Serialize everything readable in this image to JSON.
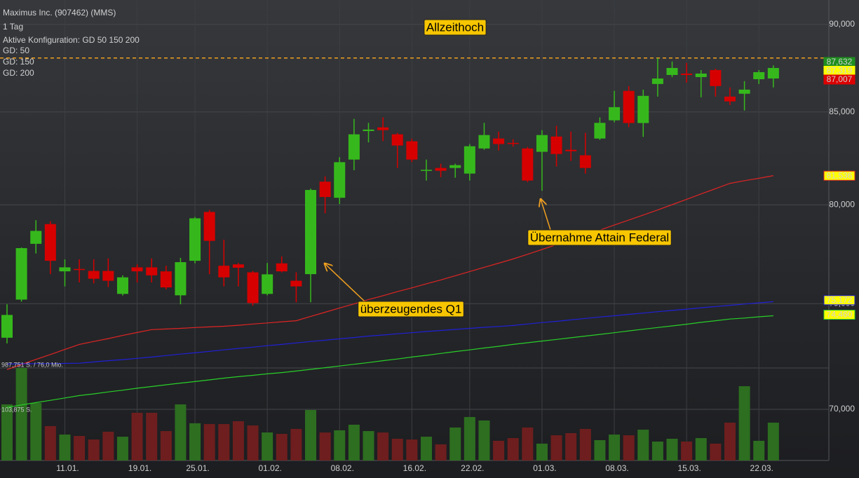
{
  "chart_data": {
    "type": "candlestick",
    "title": "Maximus Inc. (907462) (MMS)",
    "subtitle": "1 Tag",
    "config_label": "Aktive Konfiguration: GD 50 150 200",
    "categories": [
      null,
      null,
      null,
      null,
      "11.01.",
      null,
      null,
      null,
      null,
      "19.01.",
      null,
      null,
      null,
      "25.01.",
      null,
      null,
      null,
      null,
      "01.02.",
      null,
      null,
      null,
      null,
      "08.02.",
      null,
      null,
      null,
      null,
      "16.02.",
      null,
      null,
      null,
      "22.02.",
      null,
      null,
      null,
      null,
      "01.03.",
      null,
      null,
      null,
      null,
      "08.03.",
      null,
      null,
      null,
      null,
      "15.03.",
      null,
      null,
      null,
      null,
      "22.03.",
      null
    ],
    "open": [
      73.35,
      75.2,
      77.99,
      79.0,
      76.6,
      76.72,
      76.62,
      76.62,
      75.48,
      76.8,
      76.8,
      76.6,
      75.41,
      77.13,
      79.63,
      76.88,
      76.95,
      76.55,
      75.48,
      77.0,
      76.13,
      76.46,
      81.22,
      80.37,
      82.4,
      83.95,
      84.15,
      83.77,
      83.39,
      81.8,
      81.95,
      81.95,
      81.65,
      83.0,
      83.54,
      83.3,
      83.0,
      82.82,
      83.65,
      82.93,
      82.63,
      83.54,
      84.54,
      86.18,
      84.39,
      86.57,
      87.08,
      87.16,
      86.96,
      87.36,
      85.86,
      86.02,
      86.84,
      86.88
    ],
    "high": [
      74.97,
      77.8,
      79.2,
      79.15,
      77.2,
      77.2,
      77.2,
      77.25,
      76.4,
      76.95,
      77.25,
      76.88,
      77.28,
      79.37,
      79.74,
      78.2,
      77.02,
      76.62,
      77.02,
      77.35,
      76.55,
      80.85,
      81.5,
      82.53,
      84.62,
      84.4,
      84.7,
      83.85,
      83.54,
      82.4,
      82.18,
      82.18,
      83.24,
      84.4,
      83.92,
      83.5,
      83.08,
      84.0,
      84.24,
      83.92,
      83.85,
      84.7,
      86.18,
      86.45,
      86.25,
      88.05,
      87.85,
      87.77,
      87.36,
      87.44,
      86.37,
      86.73,
      87.36,
      87.63
    ],
    "low": [
      73.08,
      75.1,
      77.5,
      76.46,
      75.85,
      76.05,
      76.0,
      75.82,
      75.4,
      76.05,
      76.05,
      75.7,
      74.97,
      77.0,
      76.46,
      75.85,
      75.85,
      74.9,
      75.41,
      76.55,
      75.07,
      75.07,
      79.56,
      80.04,
      81.83,
      83.33,
      83.4,
      81.95,
      82.26,
      81.28,
      81.46,
      81.43,
      81.28,
      82.93,
      82.89,
      83.1,
      81.2,
      80.74,
      82.03,
      82.33,
      81.65,
      83.47,
      84.43,
      84.16,
      83.63,
      85.86,
      86.96,
      86.65,
      85.82,
      85.86,
      85.39,
      85.08,
      86.57,
      86.37
    ],
    "close": [
      74.45,
      77.77,
      78.65,
      77.13,
      76.8,
      76.68,
      76.23,
      76.13,
      76.3,
      76.6,
      76.4,
      75.8,
      77.06,
      79.3,
      78.14,
      76.3,
      76.78,
      75.03,
      76.45,
      76.6,
      75.85,
      80.78,
      80.41,
      82.26,
      83.77,
      84.03,
      84.0,
      83.16,
      82.4,
      81.85,
      81.8,
      82.1,
      83.12,
      83.73,
      83.24,
      83.28,
      81.28,
      83.73,
      82.7,
      82.85,
      81.95,
      84.4,
      85.27,
      84.39,
      85.9,
      86.88,
      87.48,
      87.08,
      87.16,
      86.45,
      85.59,
      86.25,
      87.24,
      87.48
    ],
    "up_color": "#36b81c",
    "down_color": "#d60000",
    "yscale": "log",
    "ylim": [
      67.7,
      91.45
    ],
    "yticks": [
      {
        "value": 70,
        "label": "70,000"
      },
      {
        "value": 75,
        "label": "75,000"
      },
      {
        "value": 80,
        "label": "80,000"
      },
      {
        "value": 85,
        "label": "85,000"
      },
      {
        "value": 90,
        "label": "90,000"
      }
    ],
    "grid": true,
    "series": [
      {
        "name": "GD: 50",
        "color": "#e02424",
        "values": [
          71.84,
          72.08,
          72.32,
          72.55,
          72.79,
          73.03,
          73.17,
          73.31,
          73.46,
          73.6,
          73.74,
          73.77,
          73.8,
          73.84,
          73.87,
          73.9,
          73.95,
          74.01,
          74.06,
          74.12,
          74.17,
          74.38,
          74.58,
          74.79,
          74.99,
          75.2,
          75.39,
          75.59,
          75.78,
          75.98,
          76.17,
          76.38,
          76.59,
          76.8,
          77.01,
          77.22,
          77.46,
          77.7,
          77.95,
          78.19,
          78.43,
          78.69,
          78.95,
          79.21,
          79.47,
          79.73,
          80.01,
          80.29,
          80.57,
          80.85,
          81.13,
          81.27,
          81.4,
          81.54
        ]
      },
      {
        "name": "GD: 150",
        "color": "#2020d8",
        "values": [
          72.1,
          72.11,
          72.12,
          72.12,
          72.13,
          72.14,
          72.2,
          72.26,
          72.31,
          72.37,
          72.43,
          72.5,
          72.57,
          72.63,
          72.7,
          72.77,
          72.84,
          72.9,
          72.97,
          73.03,
          73.1,
          73.17,
          73.23,
          73.3,
          73.36,
          73.43,
          73.48,
          73.54,
          73.59,
          73.65,
          73.7,
          73.75,
          73.8,
          73.85,
          73.89,
          73.94,
          74.01,
          74.08,
          74.14,
          74.21,
          74.28,
          74.35,
          74.41,
          74.48,
          74.54,
          74.61,
          74.67,
          74.73,
          74.8,
          74.86,
          74.92,
          74.98,
          75.04,
          75.1
        ]
      },
      {
        "name": "GD: 200",
        "color": "#28d028",
        "values": [
          70.09,
          70.2,
          70.31,
          70.41,
          70.52,
          70.63,
          70.71,
          70.8,
          70.88,
          70.97,
          71.05,
          71.13,
          71.21,
          71.28,
          71.36,
          71.44,
          71.51,
          71.57,
          71.64,
          71.7,
          71.77,
          71.85,
          71.93,
          72.01,
          72.09,
          72.17,
          72.26,
          72.34,
          72.43,
          72.51,
          72.6,
          72.69,
          72.77,
          72.86,
          72.94,
          73.03,
          73.11,
          73.19,
          73.27,
          73.35,
          73.43,
          73.51,
          73.59,
          73.68,
          73.76,
          73.84,
          73.92,
          74.0,
          74.09,
          74.17,
          74.25,
          74.3,
          74.36,
          74.41
        ]
      }
    ],
    "volume": {
      "values": [
        599000,
        987751,
        614000,
        367000,
        277000,
        262000,
        224000,
        307000,
        254000,
        509000,
        509000,
        314000,
        599000,
        397000,
        389000,
        389000,
        419000,
        374000,
        299000,
        284000,
        337000,
        539000,
        299000,
        322000,
        382000,
        314000,
        299000,
        232000,
        224000,
        254000,
        172000,
        352000,
        464000,
        427000,
        210000,
        239000,
        352000,
        180000,
        269000,
        292000,
        337000,
        217000,
        277000,
        269000,
        329000,
        202000,
        232000,
        202000,
        239000,
        180000,
        404000,
        793000,
        210000,
        404000
      ],
      "ylim": [
        0,
        987751
      ],
      "up_color": "#2d6e20",
      "down_color": "#6e1e1e"
    },
    "volume_labels": [
      "987,751 S. / 76,0 Mio.",
      "103,875 S."
    ],
    "reference_line": {
      "value": 88.05,
      "color": "#f0a020"
    },
    "price_labels": [
      {
        "value": 87.632,
        "label": "87,632",
        "color": "#1f8f1f",
        "text_color": "#ffffff",
        "border": "#1f8f1f"
      },
      {
        "value": 87.319,
        "label": "87,319",
        "color": "#ffff00",
        "text_color": "#000000",
        "border": "#ffff00"
      },
      {
        "value": 87.007,
        "label": "87,007",
        "color": "#dd0000",
        "text_color": "#ffffff",
        "border": "#dd0000"
      },
      {
        "value": 81.536,
        "label": "81,536",
        "color": "#ffff00",
        "text_color": "#000000",
        "border": "#e02424"
      },
      {
        "value": 75.172,
        "label": "75,172",
        "color": "#ffff00",
        "text_color": "#000000",
        "border": "#2020d8"
      },
      {
        "value": 74.46,
        "label": "74,460",
        "color": "#ffff00",
        "text_color": "#000000",
        "border": "#28d028"
      }
    ],
    "annotations": [
      "Allzeithoch",
      "überzeugendes Q1",
      "Übernahme Attain Federal"
    ]
  }
}
